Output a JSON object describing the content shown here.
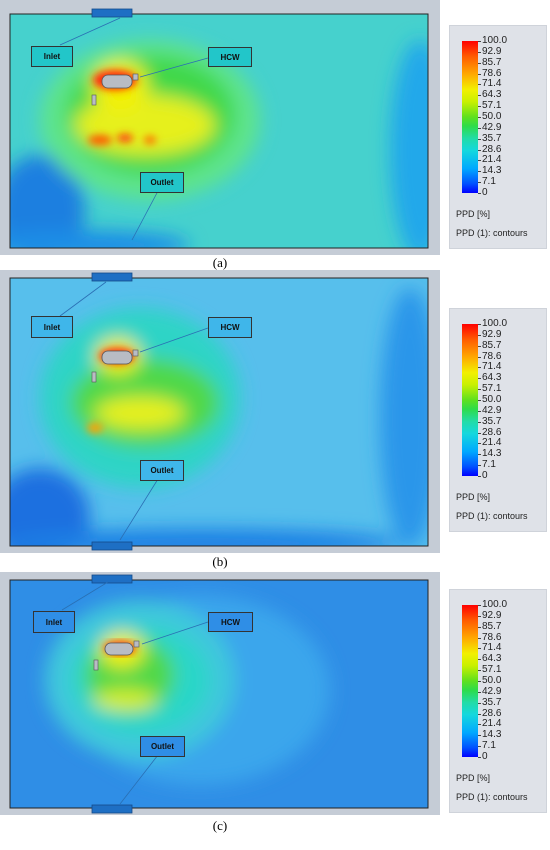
{
  "legend": {
    "ticks": [
      "100.0",
      "92.9",
      "85.7",
      "78.6",
      "71.4",
      "64.3",
      "57.1",
      "50.0",
      "42.9",
      "35.7",
      "28.6",
      "21.4",
      "14.3",
      "7.1",
      "0"
    ],
    "unit_label": "PPD [%]",
    "contours_label": "PPD (1): contours"
  },
  "panels": [
    {
      "caption": "(a)",
      "inlet": "Inlet",
      "hcw": "HCW",
      "outlet": "Outlet"
    },
    {
      "caption": "(b)",
      "inlet": "Inlet",
      "hcw": "HCW",
      "outlet": "Outlet"
    },
    {
      "caption": "(c)",
      "inlet": "Inlet",
      "hcw": "HCW",
      "outlet": "Outlet"
    }
  ],
  "colors": {
    "frame": "#c5ccd6",
    "vent": "#1e6fc4",
    "low": "#1a73e8",
    "mid": "#22c8d0",
    "green": "#3ed24a",
    "yellow": "#f3f000",
    "red": "#ff2a10"
  }
}
